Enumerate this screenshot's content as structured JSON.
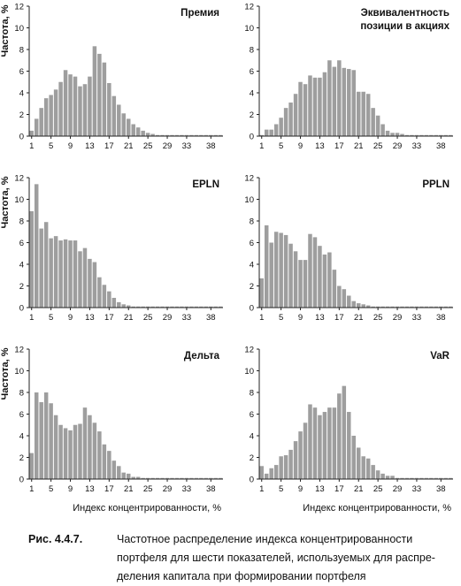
{
  "chart_data": [
    {
      "type": "bar",
      "title": "Премия",
      "ylabel": "Частота, %",
      "xlabel": "",
      "ylim": [
        0,
        12
      ],
      "yticks": [
        0,
        2,
        4,
        6,
        8,
        10,
        12
      ],
      "xticks": [
        1,
        5,
        9,
        13,
        17,
        21,
        25,
        29,
        33,
        38
      ],
      "x": [
        1,
        2,
        3,
        4,
        5,
        6,
        7,
        8,
        9,
        10,
        11,
        12,
        13,
        14,
        15,
        16,
        17,
        18,
        19,
        20,
        21,
        22,
        23,
        24,
        25,
        26,
        27,
        28,
        29,
        30,
        31,
        32,
        33,
        34,
        35,
        36,
        37,
        38,
        39,
        40
      ],
      "values": [
        0.5,
        1.6,
        2.6,
        3.5,
        3.8,
        4.3,
        5.0,
        6.1,
        5.7,
        5.5,
        4.6,
        4.8,
        5.5,
        8.3,
        7.6,
        6.8,
        4.9,
        3.7,
        2.9,
        2.1,
        1.6,
        1.1,
        0.8,
        0.5,
        0.3,
        0.2,
        0.1,
        0.1,
        0.1,
        0.1,
        0.1,
        0.1,
        0.1,
        0.1,
        0.1,
        0.1,
        0.1,
        0.1,
        0.1,
        0.1
      ]
    },
    {
      "type": "bar",
      "title": "Эквивалентность позиции в акциях",
      "title_lines": [
        "Эквивалентность",
        "позиции в акциях"
      ],
      "ylabel": "",
      "xlabel": "",
      "ylim": [
        0,
        12
      ],
      "yticks": [
        0,
        2,
        4,
        6,
        8,
        10,
        12
      ],
      "xticks": [
        1,
        5,
        9,
        13,
        17,
        21,
        25,
        29,
        33,
        38
      ],
      "x": [
        1,
        2,
        3,
        4,
        5,
        6,
        7,
        8,
        9,
        10,
        11,
        12,
        13,
        14,
        15,
        16,
        17,
        18,
        19,
        20,
        21,
        22,
        23,
        24,
        25,
        26,
        27,
        28,
        29,
        30,
        31,
        32,
        33,
        34,
        35,
        36,
        37,
        38,
        39,
        40
      ],
      "values": [
        0.1,
        0.6,
        0.6,
        1.1,
        1.7,
        2.6,
        3.1,
        3.9,
        5.0,
        4.8,
        5.6,
        5.4,
        5.4,
        5.9,
        7.0,
        6.4,
        7.0,
        6.3,
        6.2,
        6.1,
        4.1,
        4.1,
        3.9,
        2.6,
        1.9,
        1.1,
        0.5,
        0.3,
        0.3,
        0.2,
        0.1,
        0.1,
        0.1,
        0.1,
        0.1,
        0.1,
        0.1,
        0.1,
        0.1,
        0.1
      ]
    },
    {
      "type": "bar",
      "title": "EPLN",
      "ylabel": "Частота, %",
      "xlabel": "",
      "ylim": [
        0,
        12
      ],
      "yticks": [
        0,
        2,
        4,
        6,
        8,
        10,
        12
      ],
      "xticks": [
        1,
        5,
        9,
        13,
        17,
        21,
        25,
        29,
        33,
        38
      ],
      "x": [
        1,
        2,
        3,
        4,
        5,
        6,
        7,
        8,
        9,
        10,
        11,
        12,
        13,
        14,
        15,
        16,
        17,
        18,
        19,
        20,
        21,
        22,
        23,
        24,
        25,
        26,
        27,
        28,
        29,
        30,
        31,
        32,
        33,
        34,
        35,
        36,
        37,
        38,
        39,
        40
      ],
      "values": [
        8.9,
        11.4,
        7.3,
        7.9,
        6.4,
        6.6,
        6.2,
        6.3,
        6.2,
        6.2,
        5.2,
        5.5,
        4.5,
        4.2,
        2.8,
        2.1,
        1.5,
        0.9,
        0.5,
        0.3,
        0.2,
        0.1,
        0.1,
        0.1,
        0.1,
        0.1,
        0.1,
        0.1,
        0.1,
        0.1,
        0.1,
        0.1,
        0.1,
        0.1,
        0.1,
        0.1,
        0.1,
        0.1,
        0.1,
        0.1
      ]
    },
    {
      "type": "bar",
      "title": "PPLN",
      "ylabel": "",
      "xlabel": "",
      "ylim": [
        0,
        12
      ],
      "yticks": [
        0,
        2,
        4,
        6,
        8,
        10,
        12
      ],
      "xticks": [
        1,
        5,
        9,
        13,
        17,
        21,
        25,
        29,
        33,
        38
      ],
      "x": [
        1,
        2,
        3,
        4,
        5,
        6,
        7,
        8,
        9,
        10,
        11,
        12,
        13,
        14,
        15,
        16,
        17,
        18,
        19,
        20,
        21,
        22,
        23,
        24,
        25,
        26,
        27,
        28,
        29,
        30,
        31,
        32,
        33,
        34,
        35,
        36,
        37,
        38,
        39,
        40
      ],
      "values": [
        2.7,
        7.6,
        6.0,
        7.0,
        6.9,
        6.7,
        5.9,
        5.2,
        4.4,
        4.4,
        6.8,
        6.5,
        5.7,
        4.9,
        5.1,
        3.5,
        2.0,
        1.7,
        1.1,
        0.6,
        0.4,
        0.3,
        0.2,
        0.1,
        0.1,
        0.1,
        0.1,
        0.1,
        0.1,
        0.1,
        0.1,
        0.1,
        0.1,
        0.1,
        0.1,
        0.1,
        0.1,
        0.1,
        0.1,
        0.1
      ]
    },
    {
      "type": "bar",
      "title": "Дельта",
      "ylabel": "Частота, %",
      "xlabel": "Индекс концентрированности, %",
      "ylim": [
        0,
        12
      ],
      "yticks": [
        0,
        2,
        4,
        6,
        8,
        10,
        12
      ],
      "xticks": [
        1,
        5,
        9,
        13,
        17,
        21,
        25,
        29,
        33,
        38
      ],
      "x": [
        1,
        2,
        3,
        4,
        5,
        6,
        7,
        8,
        9,
        10,
        11,
        12,
        13,
        14,
        15,
        16,
        17,
        18,
        19,
        20,
        21,
        22,
        23,
        24,
        25,
        26,
        27,
        28,
        29,
        30,
        31,
        32,
        33,
        34,
        35,
        36,
        37,
        38,
        39,
        40
      ],
      "values": [
        2.4,
        8.0,
        7.1,
        8.0,
        7.0,
        5.9,
        5.0,
        4.7,
        4.5,
        5.0,
        5.1,
        6.6,
        5.9,
        5.2,
        4.4,
        3.2,
        2.6,
        1.7,
        1.2,
        0.6,
        0.5,
        0.2,
        0.2,
        0.1,
        0.1,
        0.1,
        0.1,
        0.1,
        0.1,
        0.1,
        0.1,
        0.1,
        0.1,
        0.1,
        0.1,
        0.1,
        0.1,
        0.1,
        0.1,
        0.1
      ]
    },
    {
      "type": "bar",
      "title": "VaR",
      "ylabel": "",
      "xlabel": "Индекс концентрированности, %",
      "ylim": [
        0,
        12
      ],
      "yticks": [
        0,
        2,
        4,
        6,
        8,
        10,
        12
      ],
      "xticks": [
        1,
        5,
        9,
        13,
        17,
        21,
        25,
        29,
        33,
        38
      ],
      "x": [
        1,
        2,
        3,
        4,
        5,
        6,
        7,
        8,
        9,
        10,
        11,
        12,
        13,
        14,
        15,
        16,
        17,
        18,
        19,
        20,
        21,
        22,
        23,
        24,
        25,
        26,
        27,
        28,
        29,
        30,
        31,
        32,
        33,
        34,
        35,
        36,
        37,
        38,
        39,
        40
      ],
      "values": [
        1.2,
        0.5,
        1.0,
        1.3,
        2.1,
        2.2,
        2.7,
        3.5,
        4.4,
        5.2,
        6.9,
        6.6,
        5.9,
        6.2,
        6.6,
        6.6,
        7.9,
        8.6,
        6.2,
        4.0,
        2.9,
        2.1,
        1.9,
        1.3,
        0.8,
        0.5,
        0.3,
        0.3,
        0.1,
        0.1,
        0.1,
        0.1,
        0.1,
        0.1,
        0.1,
        0.1,
        0.1,
        0.1,
        0.1,
        0.1
      ]
    }
  ],
  "caption": {
    "figure_label": "Рис. 4.4.7.",
    "lines": [
      "Частотное распределение индекса концентрированности",
      "портфеля для шести показателей, используемых для распре-",
      "деления капитала при формировании портфеля"
    ]
  },
  "colors": {
    "bar": "#9e9e9e",
    "axis": "#222222",
    "text": "#111111"
  }
}
